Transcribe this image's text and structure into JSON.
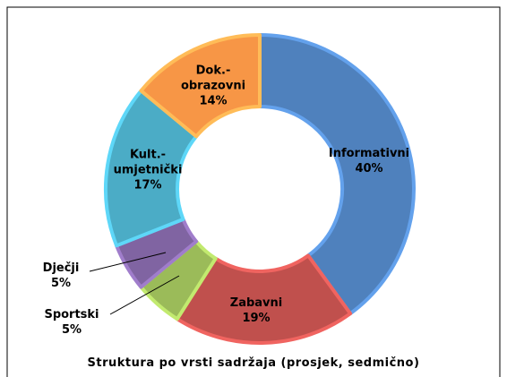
{
  "chart_data": {
    "type": "donut",
    "title": "Struktura po vrsti sadržaja (prosjek, sedmično)",
    "categories": [
      "Informativni",
      "Zabavni",
      "Sportski",
      "Dječji",
      "Kult.-umjetnički",
      "Dok.-obrazovni"
    ],
    "values": [
      40,
      19,
      5,
      5,
      17,
      14
    ],
    "value_labels": [
      "40%",
      "19%",
      "5%",
      "5%",
      "17%",
      "14%"
    ],
    "colors": [
      "#4f81bd",
      "#c0504d",
      "#9bbb59",
      "#8064a2",
      "#4bacc6",
      "#f79646"
    ]
  }
}
